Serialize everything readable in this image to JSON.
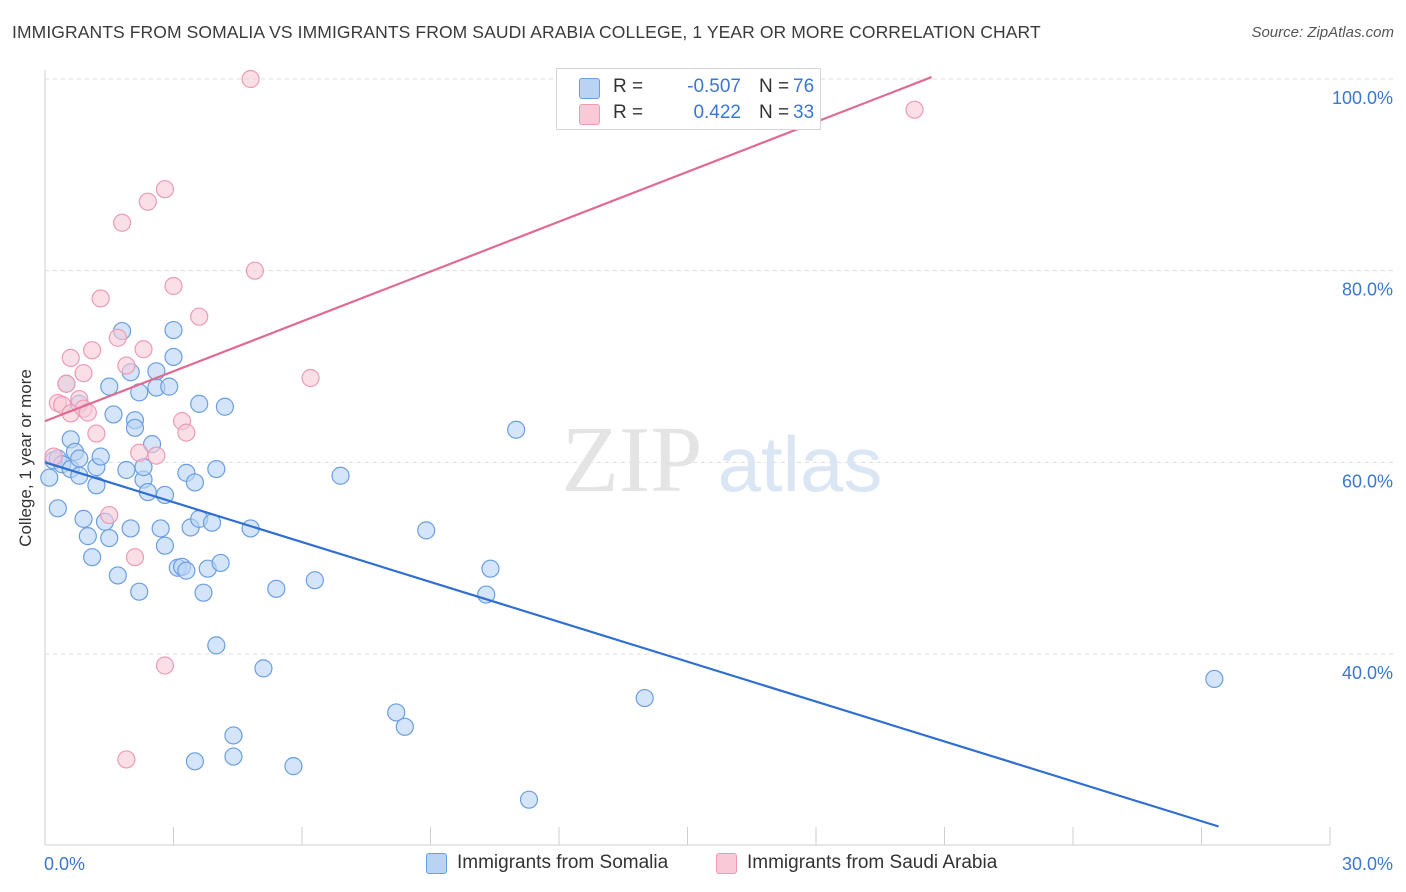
{
  "title": "IMMIGRANTS FROM SOMALIA VS IMMIGRANTS FROM SAUDI ARABIA COLLEGE, 1 YEAR OR MORE CORRELATION CHART",
  "source": "Source: ZipAtlas.com",
  "watermark": {
    "zip": "ZIP",
    "atlas": "atlas"
  },
  "stats": {
    "somalia": {
      "r_label": "R =",
      "r": "-0.507",
      "n_label": "N =",
      "n": "76"
    },
    "saudi": {
      "r_label": "R =",
      "r": "0.422",
      "n_label": "N =",
      "n": "33"
    }
  },
  "colors": {
    "somalia_fill": "#b9d3f5",
    "somalia_stroke": "#6a9ee0",
    "somalia_line": "#2f6fd0",
    "saudi_fill": "#f8c9d7",
    "saudi_stroke": "#ee9ab4",
    "saudi_line": "#e06b92",
    "tick_text": "#3a78d0",
    "grid": "#dcdcdc"
  },
  "chart_data": {
    "type": "scatter",
    "ylabel": "College, 1 year or more",
    "xlim": [
      0,
      30
    ],
    "ylim": [
      22,
      102
    ],
    "x_tick_labels": [
      {
        "value": 0,
        "label": "0.0%"
      },
      {
        "value": 30,
        "label": "30.0%"
      }
    ],
    "y_tick_labels": [
      {
        "value": 40,
        "label": "40.0%"
      },
      {
        "value": 60,
        "label": "60.0%"
      },
      {
        "value": 80,
        "label": "80.0%"
      },
      {
        "value": 100,
        "label": "100.0%"
      }
    ],
    "y_grid": [
      40,
      60,
      80,
      100
    ],
    "x_minor_ticks": [
      3,
      6,
      9,
      12,
      15,
      18,
      21,
      24,
      27,
      30
    ],
    "legend_position": "bottom-center",
    "series": [
      {
        "name": "Immigrants from Somalia",
        "points": [
          [
            0.1,
            58.4
          ],
          [
            0.2,
            60.2
          ],
          [
            0.3,
            60.4
          ],
          [
            0.4,
            59.8
          ],
          [
            0.5,
            68.2
          ],
          [
            0.6,
            62.4
          ],
          [
            0.6,
            59.3
          ],
          [
            0.7,
            61.1
          ],
          [
            0.8,
            58.6
          ],
          [
            0.8,
            60.4
          ],
          [
            0.8,
            66.1
          ],
          [
            0.9,
            54.1
          ],
          [
            1.0,
            52.3
          ],
          [
            1.1,
            50.1
          ],
          [
            1.2,
            57.6
          ],
          [
            1.2,
            59.5
          ],
          [
            1.3,
            60.6
          ],
          [
            1.4,
            53.8
          ],
          [
            1.5,
            67.9
          ],
          [
            1.6,
            65.0
          ],
          [
            1.7,
            48.2
          ],
          [
            1.8,
            73.7
          ],
          [
            1.9,
            59.2
          ],
          [
            2.0,
            69.4
          ],
          [
            2.0,
            53.1
          ],
          [
            2.1,
            64.4
          ],
          [
            2.1,
            63.6
          ],
          [
            2.2,
            67.3
          ],
          [
            2.2,
            46.5
          ],
          [
            2.3,
            58.2
          ],
          [
            2.3,
            59.5
          ],
          [
            2.4,
            56.9
          ],
          [
            2.5,
            61.9
          ],
          [
            2.6,
            67.8
          ],
          [
            2.6,
            69.5
          ],
          [
            2.7,
            53.1
          ],
          [
            2.8,
            56.6
          ],
          [
            2.8,
            51.3
          ],
          [
            2.9,
            67.9
          ],
          [
            3.0,
            73.8
          ],
          [
            3.0,
            71.0
          ],
          [
            3.1,
            49.0
          ],
          [
            3.2,
            49.1
          ],
          [
            3.3,
            48.7
          ],
          [
            3.3,
            58.9
          ],
          [
            3.4,
            53.2
          ],
          [
            3.5,
            57.9
          ],
          [
            3.6,
            66.1
          ],
          [
            3.6,
            54.1
          ],
          [
            3.7,
            46.4
          ],
          [
            3.8,
            48.9
          ],
          [
            3.9,
            53.7
          ],
          [
            4.0,
            59.3
          ],
          [
            4.0,
            40.9
          ],
          [
            4.1,
            49.5
          ],
          [
            4.2,
            65.8
          ],
          [
            4.4,
            31.5
          ],
          [
            4.4,
            29.3
          ],
          [
            4.8,
            53.1
          ],
          [
            5.1,
            38.5
          ],
          [
            5.4,
            46.8
          ],
          [
            5.8,
            28.3
          ],
          [
            6.3,
            47.7
          ],
          [
            6.9,
            58.6
          ],
          [
            8.2,
            33.9
          ],
          [
            8.4,
            32.4
          ],
          [
            8.9,
            52.9
          ],
          [
            3.5,
            28.8
          ],
          [
            10.3,
            46.2
          ],
          [
            10.4,
            48.9
          ],
          [
            11.0,
            63.4
          ],
          [
            11.3,
            24.8
          ],
          [
            14.0,
            35.4
          ],
          [
            27.3,
            37.4
          ],
          [
            0.3,
            55.2
          ],
          [
            1.5,
            52.1
          ]
        ]
      },
      {
        "name": "Immigrants from Saudi Arabia",
        "points": [
          [
            0.2,
            60.6
          ],
          [
            0.3,
            66.2
          ],
          [
            0.4,
            66.0
          ],
          [
            0.5,
            68.2
          ],
          [
            0.6,
            65.1
          ],
          [
            0.6,
            70.9
          ],
          [
            0.8,
            66.6
          ],
          [
            0.9,
            69.3
          ],
          [
            0.9,
            65.6
          ],
          [
            1.0,
            65.2
          ],
          [
            1.1,
            71.7
          ],
          [
            1.2,
            63.0
          ],
          [
            1.3,
            77.1
          ],
          [
            1.5,
            54.5
          ],
          [
            1.7,
            73.0
          ],
          [
            1.8,
            85.0
          ],
          [
            1.9,
            29.0
          ],
          [
            1.9,
            70.1
          ],
          [
            2.1,
            50.1
          ],
          [
            2.2,
            61.0
          ],
          [
            2.3,
            71.8
          ],
          [
            2.4,
            87.2
          ],
          [
            2.6,
            60.7
          ],
          [
            2.8,
            88.5
          ],
          [
            2.8,
            38.8
          ],
          [
            3.0,
            78.4
          ],
          [
            3.2,
            64.3
          ],
          [
            3.3,
            63.1
          ],
          [
            3.6,
            75.2
          ],
          [
            4.8,
            100.0
          ],
          [
            4.9,
            80.0
          ],
          [
            6.2,
            68.8
          ],
          [
            20.3,
            96.8
          ]
        ]
      }
    ],
    "trend_lines": [
      {
        "series": "Immigrants from Somalia",
        "x": [
          0.0,
          27.4
        ],
        "y": [
          60.0,
          22.0
        ]
      },
      {
        "series": "Immigrants from Saudi Arabia",
        "x": [
          0.0,
          20.7
        ],
        "y": [
          64.3,
          100.2
        ]
      }
    ]
  }
}
